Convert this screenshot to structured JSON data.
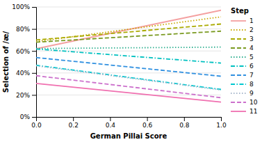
{
  "chart_data": {
    "type": "line",
    "xlabel": "German Pillai Score",
    "ylabel": "Selection of /æ/",
    "legend_title": "Step",
    "legend": "right",
    "x": [
      0.0,
      1.0
    ],
    "xlim": [
      0.0,
      1.0
    ],
    "ylim": [
      0.0,
      1.0
    ],
    "xticks": [
      {
        "value": 0.0,
        "label": "0.0"
      },
      {
        "value": 0.2,
        "label": "0.2"
      },
      {
        "value": 0.4,
        "label": "0.4"
      },
      {
        "value": 0.6,
        "label": "0.6"
      },
      {
        "value": 0.8,
        "label": "0.8"
      },
      {
        "value": 1.0,
        "label": "1.0"
      }
    ],
    "yticks": [
      {
        "value": 0.0,
        "label": "0%"
      },
      {
        "value": 0.2,
        "label": "20%"
      },
      {
        "value": 0.4,
        "label": "40%"
      },
      {
        "value": 0.6,
        "label": "60%"
      },
      {
        "value": 0.8,
        "label": "80%"
      },
      {
        "value": 1.0,
        "label": "100%"
      }
    ],
    "series": [
      {
        "name": "1",
        "color": "#F4A0A0",
        "line_style": "solid",
        "values": [
          0.62,
          0.97
        ]
      },
      {
        "name": "2",
        "color": "#C8A800",
        "line_style": "dotted",
        "values": [
          0.685,
          0.91
        ]
      },
      {
        "name": "3",
        "color": "#AAAA00",
        "line_style": "dashed",
        "values": [
          0.7,
          0.845
        ]
      },
      {
        "name": "4",
        "color": "#7A9A20",
        "line_style": "dashed",
        "values": [
          0.68,
          0.78
        ]
      },
      {
        "name": "5",
        "color": "#30B090",
        "line_style": "dotted",
        "values": [
          0.622,
          0.635
        ]
      },
      {
        "name": "6",
        "color": "#00C0C0",
        "line_style": "dashdot",
        "values": [
          0.618,
          0.49
        ]
      },
      {
        "name": "7",
        "color": "#3090E0",
        "line_style": "dashed",
        "values": [
          0.54,
          0.37
        ]
      },
      {
        "name": "8",
        "color": "#00C8D0",
        "line_style": "dashdot",
        "values": [
          0.47,
          0.25
        ]
      },
      {
        "name": "9",
        "color": "#A8B8CC",
        "line_style": "dotted",
        "values": [
          0.465,
          0.245
        ]
      },
      {
        "name": "10",
        "color": "#CC70CC",
        "line_style": "dashed",
        "values": [
          0.375,
          0.175
        ]
      },
      {
        "name": "11",
        "color": "#F070B0",
        "line_style": "solid",
        "values": [
          0.305,
          0.135
        ]
      }
    ]
  }
}
